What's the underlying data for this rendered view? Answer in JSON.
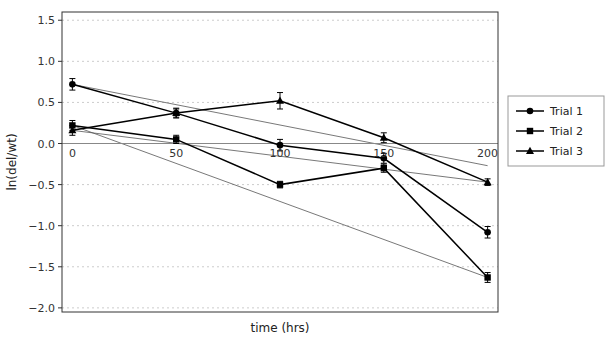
{
  "chart_data": {
    "type": "line",
    "xlabel": "time (hrs)",
    "ylabel": "ln(del/wt)",
    "x": [
      0,
      50,
      100,
      150,
      200
    ],
    "xlim": [
      -5,
      205
    ],
    "ylim": [
      -2.05,
      1.6
    ],
    "xticks": [
      0,
      50,
      100,
      150,
      200
    ],
    "yticks": [
      {
        "value": -2,
        "label": "−2.0"
      },
      {
        "value": -1.5,
        "label": "−1.5"
      },
      {
        "value": -1,
        "label": "−1.0"
      },
      {
        "value": -0.5,
        "label": "−0.5"
      },
      {
        "value": 0,
        "label": "0.0"
      },
      {
        "value": 0.5,
        "label": "0.5"
      },
      {
        "value": 1,
        "label": "1.0"
      },
      {
        "value": 1.5,
        "label": "1.5"
      }
    ],
    "grid": true,
    "legend": "right",
    "baseline": 0,
    "series": [
      {
        "name": "Trial 1",
        "marker": "circle",
        "color": "#000000",
        "values": [
          0.72,
          0.37,
          -0.02,
          -0.18,
          -1.08
        ],
        "errors": [
          0.07,
          0.06,
          0.07,
          0.06,
          0.07
        ]
      },
      {
        "name": "Trial 2",
        "marker": "square",
        "color": "#000000",
        "values": [
          0.22,
          0.05,
          -0.5,
          -0.3,
          -1.63
        ],
        "errors": [
          0.06,
          0.05,
          0.04,
          0.05,
          0.06
        ]
      },
      {
        "name": "Trial 3",
        "marker": "triangle",
        "color": "#000000",
        "values": [
          0.16,
          0.37,
          0.52,
          0.07,
          -0.47
        ],
        "errors": [
          0.06,
          0.05,
          0.1,
          0.06,
          0.04
        ]
      }
    ],
    "trend_lines": [
      {
        "x": [
          0,
          200
        ],
        "values": [
          0.72,
          -0.27
        ]
      },
      {
        "x": [
          0,
          200
        ],
        "values": [
          0.22,
          -1.63
        ]
      },
      {
        "x": [
          0,
          200
        ],
        "values": [
          0.16,
          -0.47
        ]
      }
    ]
  }
}
